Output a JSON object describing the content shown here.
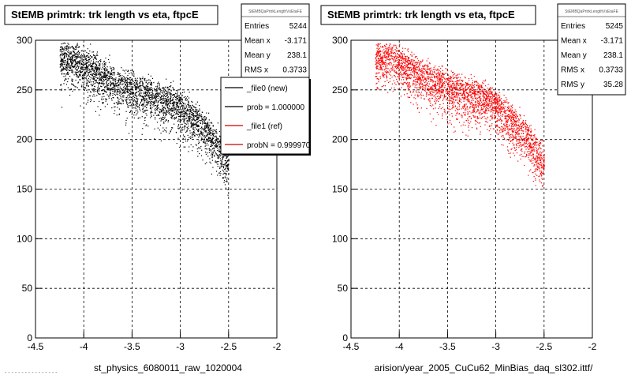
{
  "chart_data": [
    {
      "type": "scatter",
      "title": "StEMB primtrk: trk length vs eta, ftpcE",
      "xlabel": "st_physics_6080011_raw_1020004",
      "ylabel": "",
      "xlim": [
        -4.5,
        -2
      ],
      "ylim": [
        0,
        300
      ],
      "xticks": [
        "-4.5",
        "-4",
        "-3.5",
        "-3",
        "-2.5",
        "-2"
      ],
      "yticks": [
        "0",
        "50",
        "100",
        "150",
        "200",
        "250",
        "300"
      ],
      "grid": true,
      "marker_color": "#000000",
      "series": [
        {
          "name": "_file0 (new)",
          "points": [
            [
              -4.1,
              292
            ],
            [
              -3.9,
              280
            ],
            [
              -3.7,
              270
            ],
            [
              -3.5,
              262
            ],
            [
              -3.3,
              255
            ],
            [
              -3.1,
              250
            ],
            [
              -2.95,
              240
            ],
            [
              -2.85,
              232
            ],
            [
              -2.75,
              222
            ],
            [
              -2.65,
              210
            ],
            [
              -2.55,
              195
            ],
            [
              -2.45,
              180
            ],
            [
              -2.35,
              165
            ],
            [
              -2.3,
              155
            ]
          ]
        }
      ],
      "stats": {
        "title": "StEMBQaPrtrkLengthVsEtaFE",
        "rows": [
          {
            "label": "Entries",
            "value": "5244"
          },
          {
            "label": "Mean x",
            "value": "-3.171"
          },
          {
            "label": "Mean y",
            "value": "238.1"
          },
          {
            "label": "RMS x",
            "value": "0.3733"
          }
        ]
      },
      "legend": {
        "placement": "top-right",
        "entries": [
          {
            "label": "_file0 (new)",
            "color": "#000000"
          },
          {
            "label": "prob = 1.000000",
            "color": "#000000"
          },
          {
            "label": "_file1 (ref)",
            "color": "#cc0000"
          },
          {
            "label": "probN = 0.999970",
            "color": "#cc0000"
          }
        ]
      }
    },
    {
      "type": "scatter",
      "title": "StEMB primtrk: trk length vs eta, ftpcE",
      "xlabel": "arision/year_2005_CuCu62_MinBias_daq_sl302.ittf/",
      "ylabel": "",
      "xlim": [
        -4.5,
        -2
      ],
      "ylim": [
        0,
        300
      ],
      "xticks": [
        "-4.5",
        "-4",
        "-3.5",
        "-3",
        "-2.5",
        "-2"
      ],
      "yticks": [
        "0",
        "50",
        "100",
        "150",
        "200",
        "250",
        "300"
      ],
      "grid": true,
      "marker_color": "#ff0000",
      "series": [
        {
          "name": "_file1 (ref)",
          "points": [
            [
              -4.05,
              292
            ],
            [
              -3.85,
              280
            ],
            [
              -3.65,
              270
            ],
            [
              -3.45,
              262
            ],
            [
              -3.25,
              255
            ],
            [
              -3.05,
              250
            ],
            [
              -2.95,
              240
            ],
            [
              -2.85,
              232
            ],
            [
              -2.75,
              222
            ],
            [
              -2.65,
              210
            ],
            [
              -2.55,
              195
            ],
            [
              -2.45,
              180
            ],
            [
              -2.35,
              165
            ],
            [
              -2.3,
              155
            ]
          ]
        }
      ],
      "stats": {
        "title": "StEMBQaPrtrkLengthVsEtaFE",
        "rows": [
          {
            "label": "Entries",
            "value": "5245"
          },
          {
            "label": "Mean x",
            "value": "-3.171"
          },
          {
            "label": "Mean y",
            "value": "238.1"
          },
          {
            "label": "RMS x",
            "value": "0.3733"
          },
          {
            "label": "RMS y",
            "value": "35.28"
          }
        ]
      }
    }
  ],
  "footer": "- - - -  - -  - - - - - - - - - -"
}
